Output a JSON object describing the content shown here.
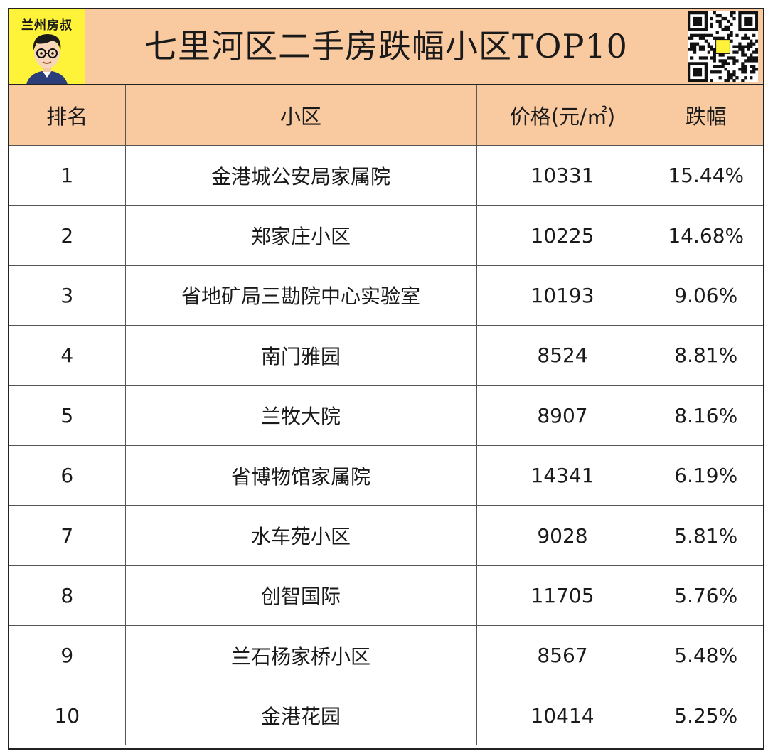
{
  "header": {
    "logo_text": "兰州房叔",
    "title": "七里河区二手房跌幅小区TOP10"
  },
  "table": {
    "columns": [
      "排名",
      "小区",
      "价格(元/㎡)",
      "跌幅"
    ],
    "rows": [
      {
        "rank": "1",
        "name": "金港城公安局家属院",
        "price": "10331",
        "drop": "15.44%"
      },
      {
        "rank": "2",
        "name": "郑家庄小区",
        "price": "10225",
        "drop": "14.68%"
      },
      {
        "rank": "3",
        "name": "省地矿局三勘院中心实验室",
        "price": "10193",
        "drop": "9.06%"
      },
      {
        "rank": "4",
        "name": "南门雅园",
        "price": "8524",
        "drop": "8.81%"
      },
      {
        "rank": "5",
        "name": "兰牧大院",
        "price": "8907",
        "drop": "8.16%"
      },
      {
        "rank": "6",
        "name": "省博物馆家属院",
        "price": "14341",
        "drop": "6.19%"
      },
      {
        "rank": "7",
        "name": "水车苑小区",
        "price": "9028",
        "drop": "5.81%"
      },
      {
        "rank": "8",
        "name": "创智国际",
        "price": "11705",
        "drop": "5.76%"
      },
      {
        "rank": "9",
        "name": "兰石杨家桥小区",
        "price": "8567",
        "drop": "5.48%"
      },
      {
        "rank": "10",
        "name": "金港花园",
        "price": "10414",
        "drop": "5.25%"
      }
    ]
  },
  "colors": {
    "header_bg": "#f9c9a0",
    "logo_bg": "#fff33a",
    "price": "#e8141b",
    "drop": "#1cae4e"
  },
  "icons": {
    "logo": "cartoon-avatar-icon",
    "qr": "qr-code-icon"
  }
}
